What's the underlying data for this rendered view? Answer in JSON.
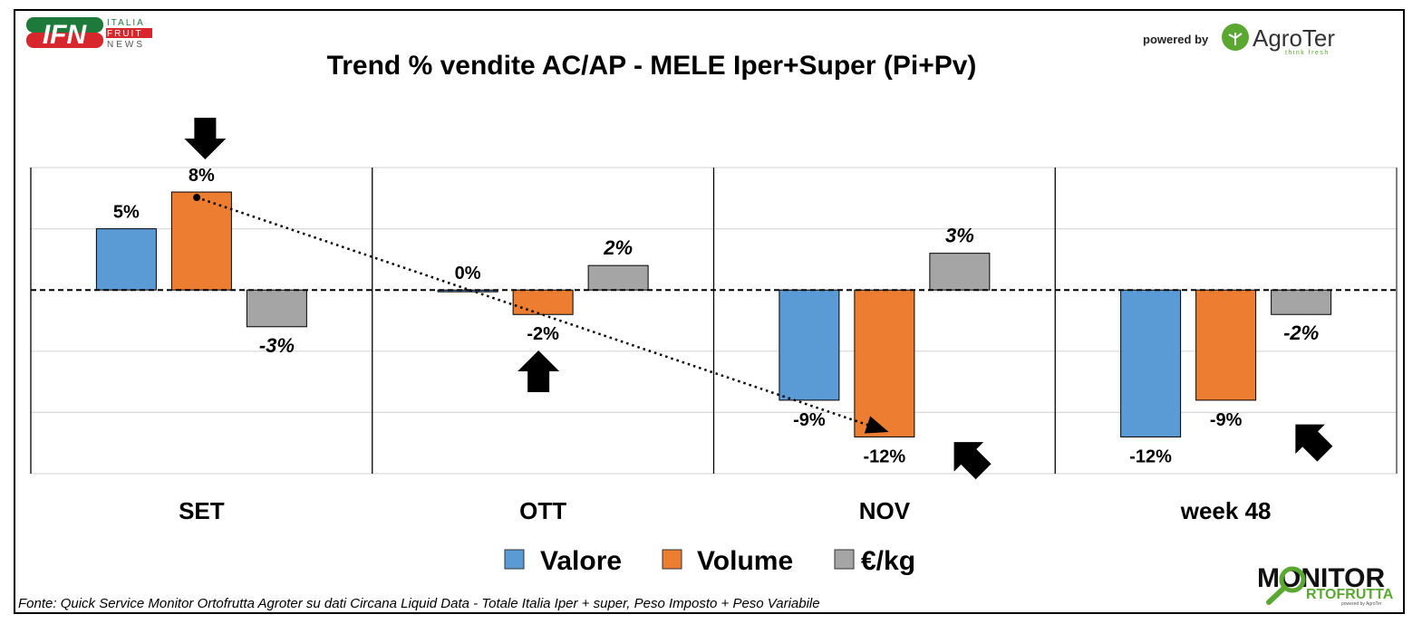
{
  "logos": {
    "ifn": {
      "mark": "IFN",
      "line1": "ITALIA",
      "line2": "FRUIT",
      "line3": "NEWS",
      "colors": {
        "green": "#1e7a3a",
        "red": "#d7262c"
      }
    },
    "powered_by": "powered by",
    "agroter": {
      "name": "AgroTer",
      "tagline": "think fresh",
      "color": "#5aa832"
    },
    "monitor": {
      "line1": "MONITOR",
      "line2": "RTOFRUTTA",
      "tagline": "powered by AgroTer",
      "green": "#5aa832"
    }
  },
  "source_note": "Fonte: Quick Service Monitor Ortofrutta Agroter su dati Circana Liquid Data - Totale Italia Iper + super, Peso Imposto + Peso Variabile",
  "chart_data": {
    "type": "bar",
    "title": "Trend % vendite AC/AP - MELE  Iper+Super (Pi+Pv)",
    "xlabel": "",
    "ylabel": "",
    "categories": [
      "SET",
      "OTT",
      "NOV",
      "week 48"
    ],
    "series": [
      {
        "name": "Valore",
        "color": "#5b9bd5",
        "values": [
          5,
          0,
          -9,
          -12
        ],
        "labels": [
          "5%",
          "0%",
          "-9%",
          "-12%"
        ],
        "label_italic": false
      },
      {
        "name": "Volume",
        "color": "#ed7d31",
        "values": [
          8,
          -2,
          -12,
          -9
        ],
        "labels": [
          "8%",
          "-2%",
          "-12%",
          "-9%"
        ],
        "label_italic": false
      },
      {
        "name": "€/kg",
        "color": "#a5a5a5",
        "values": [
          -3,
          2,
          3,
          -2
        ],
        "labels": [
          "-3%",
          "2%",
          "3%",
          "-2%"
        ],
        "label_italic": true
      }
    ],
    "ylim": [
      -15,
      10
    ],
    "gridlines": [
      10,
      5,
      0,
      -5,
      -10,
      -15
    ],
    "grid": true,
    "zero_line": "dashed",
    "legend": "bottom-center",
    "annotations": {
      "trend_arrow": {
        "from": {
          "category": "SET",
          "series": "Volume",
          "value": 8
        },
        "to": {
          "category": "NOV",
          "series": "Volume",
          "value": -12
        },
        "style": "dotted"
      },
      "block_arrows": [
        {
          "category": "SET",
          "direction": "down",
          "target": "Volume"
        },
        {
          "category": "OTT",
          "direction": "up",
          "target": "Volume"
        },
        {
          "category": "NOV",
          "direction": "up-left",
          "target": "Volume"
        },
        {
          "category": "week 48",
          "direction": "up-left",
          "target": "Volume"
        }
      ]
    }
  }
}
